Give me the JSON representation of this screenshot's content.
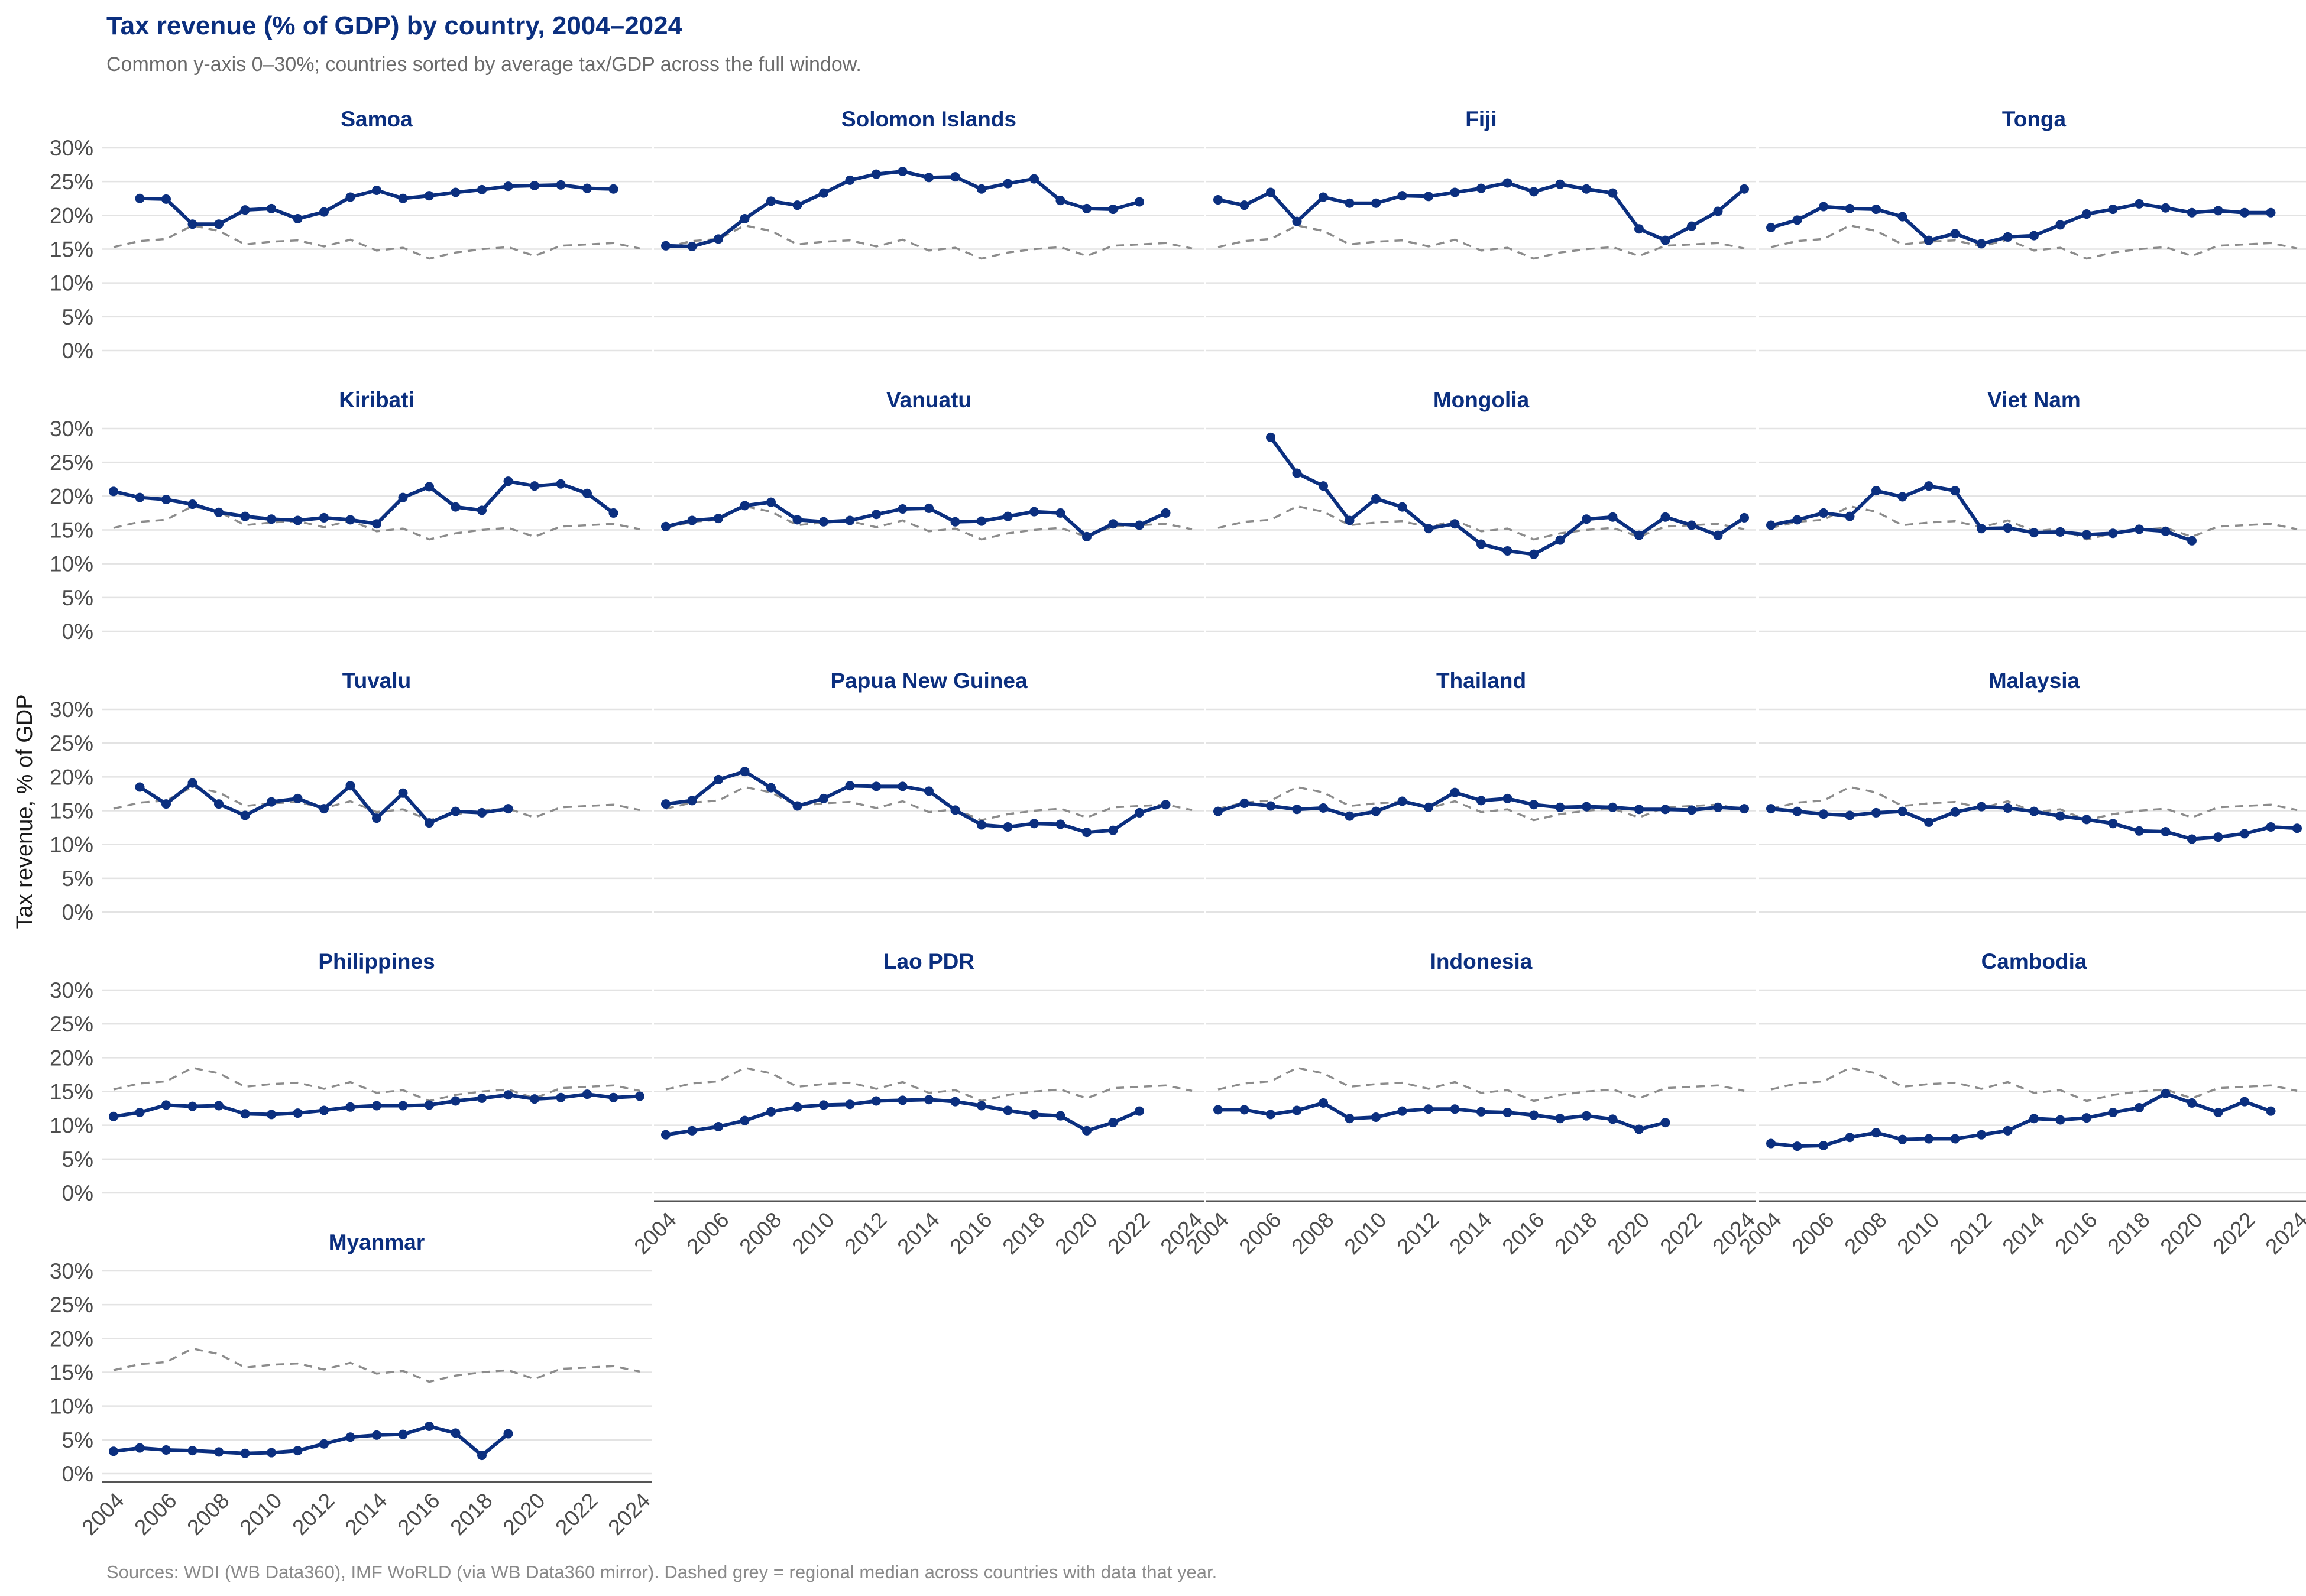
{
  "chart_data": {
    "type": "line",
    "title": "Tax revenue (% of GDP) by country, 2004–2024",
    "subtitle": "Common y-axis 0–30%; countries sorted by average tax/GDP across the full window.",
    "ylabel": "Tax revenue, % of GDP",
    "caption": "Sources: WDI (WB Data360), IMF WoRLD (via WB Data360 mirror). Dashed grey = regional median across countries with data that year.",
    "ylim": [
      0,
      30
    ],
    "xlim": [
      2004,
      2024
    ],
    "yticks": [
      0,
      5,
      10,
      15,
      20,
      25,
      30
    ],
    "ytick_labels": [
      "0%",
      "5%",
      "10%",
      "15%",
      "20%",
      "25%",
      "30%"
    ],
    "xticks": [
      2004,
      2006,
      2008,
      2010,
      2012,
      2014,
      2016,
      2018,
      2020,
      2022,
      2024
    ],
    "xtick_labels": [
      "2004",
      "2006",
      "2008",
      "2010",
      "2012",
      "2014",
      "2016",
      "2018",
      "2020",
      "2022",
      "2024"
    ],
    "grid": true,
    "colors": {
      "series": "#0b2f7f",
      "median": "#8c8c8c",
      "title": "#0b2f7f"
    },
    "regional_median": {
      "x": [
        2004,
        2005,
        2006,
        2007,
        2008,
        2009,
        2010,
        2011,
        2012,
        2013,
        2014,
        2015,
        2016,
        2017,
        2018,
        2019,
        2020,
        2021,
        2022,
        2023,
        2024
      ],
      "y": [
        15.3,
        16.2,
        16.5,
        18.5,
        17.7,
        15.7,
        16.1,
        16.3,
        15.4,
        16.4,
        14.8,
        15.2,
        13.6,
        14.5,
        15.0,
        15.3,
        14.0,
        15.5,
        15.7,
        15.9,
        15.1
      ]
    },
    "panels": [
      {
        "name": "Samoa",
        "x": [
          2005,
          2006,
          2007,
          2008,
          2009,
          2010,
          2011,
          2012,
          2013,
          2014,
          2015,
          2016,
          2017,
          2018,
          2019,
          2020,
          2021,
          2022,
          2023
        ],
        "y": [
          22.5,
          22.4,
          18.7,
          18.7,
          20.8,
          21.0,
          19.5,
          20.5,
          22.7,
          23.7,
          22.5,
          22.9,
          23.4,
          23.8,
          24.3,
          24.4,
          24.5,
          24.0,
          23.9
        ]
      },
      {
        "name": "Solomon Islands",
        "x": [
          2004,
          2005,
          2006,
          2007,
          2008,
          2009,
          2010,
          2011,
          2012,
          2013,
          2014,
          2015,
          2016,
          2017,
          2018,
          2019,
          2020,
          2021,
          2022
        ],
        "y": [
          15.5,
          15.4,
          16.5,
          19.5,
          22.1,
          21.5,
          23.3,
          25.2,
          26.1,
          26.5,
          25.6,
          25.7,
          23.9,
          24.7,
          25.4,
          22.2,
          21.0,
          20.9,
          22.0
        ]
      },
      {
        "name": "Fiji",
        "x": [
          2004,
          2005,
          2006,
          2007,
          2008,
          2009,
          2010,
          2011,
          2012,
          2013,
          2014,
          2015,
          2016,
          2017,
          2018,
          2019,
          2020,
          2021,
          2022,
          2023,
          2024
        ],
        "y": [
          22.3,
          21.5,
          23.4,
          19.1,
          22.7,
          21.8,
          21.8,
          22.9,
          22.8,
          23.4,
          24.0,
          24.8,
          23.5,
          24.6,
          23.9,
          23.3,
          18.0,
          16.3,
          18.4,
          20.6,
          23.9
        ]
      },
      {
        "name": "Tonga",
        "x": [
          2004,
          2005,
          2006,
          2007,
          2008,
          2009,
          2010,
          2011,
          2012,
          2013,
          2014,
          2015,
          2016,
          2017,
          2018,
          2019,
          2020,
          2021,
          2022,
          2023
        ],
        "y": [
          18.2,
          19.3,
          21.3,
          21.0,
          20.9,
          19.8,
          16.3,
          17.3,
          15.8,
          16.8,
          17.0,
          18.6,
          20.2,
          20.9,
          21.7,
          21.1,
          20.4,
          20.7,
          20.4,
          20.4
        ]
      },
      {
        "name": "Kiribati",
        "x": [
          2004,
          2005,
          2006,
          2007,
          2008,
          2009,
          2010,
          2011,
          2012,
          2013,
          2014,
          2015,
          2016,
          2017,
          2018,
          2019,
          2020,
          2021,
          2022,
          2023
        ],
        "y": [
          20.7,
          19.8,
          19.5,
          18.8,
          17.6,
          17.0,
          16.6,
          16.4,
          16.8,
          16.5,
          15.9,
          19.8,
          21.4,
          18.4,
          17.9,
          22.2,
          21.5,
          21.8,
          20.4,
          17.5
        ]
      },
      {
        "name": "Vanuatu",
        "x": [
          2004,
          2005,
          2006,
          2007,
          2008,
          2009,
          2010,
          2011,
          2012,
          2013,
          2014,
          2015,
          2016,
          2017,
          2018,
          2019,
          2020,
          2021,
          2022,
          2023
        ],
        "y": [
          15.5,
          16.4,
          16.7,
          18.6,
          19.1,
          16.5,
          16.2,
          16.4,
          17.3,
          18.1,
          18.2,
          16.2,
          16.3,
          17.0,
          17.7,
          17.5,
          14.0,
          15.9,
          15.7,
          17.5
        ]
      },
      {
        "name": "Mongolia",
        "x": [
          2006,
          2007,
          2008,
          2009,
          2010,
          2011,
          2012,
          2013,
          2014,
          2015,
          2016,
          2017,
          2018,
          2019,
          2020,
          2021,
          2022,
          2023,
          2024
        ],
        "y": [
          28.7,
          23.4,
          21.5,
          16.4,
          19.6,
          18.4,
          15.2,
          15.9,
          12.9,
          11.9,
          11.4,
          13.5,
          16.6,
          16.9,
          14.2,
          16.9,
          15.7,
          14.2,
          16.8
        ]
      },
      {
        "name": "Viet Nam",
        "x": [
          2004,
          2005,
          2006,
          2007,
          2008,
          2009,
          2010,
          2011,
          2012,
          2013,
          2014,
          2015,
          2016,
          2017,
          2018,
          2019,
          2020
        ],
        "y": [
          15.7,
          16.5,
          17.5,
          17.0,
          20.8,
          19.9,
          21.5,
          20.8,
          15.2,
          15.3,
          14.6,
          14.7,
          14.3,
          14.5,
          15.1,
          14.8,
          13.4
        ]
      },
      {
        "name": "Tuvalu",
        "x": [
          2005,
          2006,
          2007,
          2008,
          2009,
          2010,
          2011,
          2012,
          2013,
          2014,
          2015,
          2016,
          2017,
          2018,
          2019
        ],
        "y": [
          18.5,
          16.0,
          19.1,
          16.0,
          14.3,
          16.3,
          16.8,
          15.3,
          18.7,
          13.9,
          17.6,
          13.2,
          14.9,
          14.7,
          15.3
        ]
      },
      {
        "name": "Papua New Guinea",
        "x": [
          2004,
          2005,
          2006,
          2007,
          2008,
          2009,
          2010,
          2011,
          2012,
          2013,
          2014,
          2015,
          2016,
          2017,
          2018,
          2019,
          2020,
          2021,
          2022,
          2023
        ],
        "y": [
          16.0,
          16.5,
          19.6,
          20.8,
          18.4,
          15.7,
          16.8,
          18.7,
          18.6,
          18.6,
          17.9,
          15.1,
          12.9,
          12.6,
          13.1,
          13.0,
          11.8,
          12.1,
          14.7,
          15.9
        ]
      },
      {
        "name": "Thailand",
        "x": [
          2004,
          2005,
          2006,
          2007,
          2008,
          2009,
          2010,
          2011,
          2012,
          2013,
          2014,
          2015,
          2016,
          2017,
          2018,
          2019,
          2020,
          2021,
          2022,
          2023,
          2024
        ],
        "y": [
          14.9,
          16.1,
          15.7,
          15.2,
          15.4,
          14.2,
          14.9,
          16.4,
          15.5,
          17.7,
          16.5,
          16.8,
          15.9,
          15.5,
          15.6,
          15.5,
          15.2,
          15.2,
          15.1,
          15.5,
          15.3
        ]
      },
      {
        "name": "Malaysia",
        "x": [
          2004,
          2005,
          2006,
          2007,
          2008,
          2009,
          2010,
          2011,
          2012,
          2013,
          2014,
          2015,
          2016,
          2017,
          2018,
          2019,
          2020,
          2021,
          2022,
          2023,
          2024
        ],
        "y": [
          15.3,
          14.9,
          14.5,
          14.3,
          14.7,
          14.9,
          13.3,
          14.8,
          15.6,
          15.4,
          14.9,
          14.2,
          13.7,
          13.1,
          12.0,
          11.9,
          10.8,
          11.1,
          11.6,
          12.6,
          12.4
        ]
      },
      {
        "name": "Philippines",
        "x": [
          2004,
          2005,
          2006,
          2007,
          2008,
          2009,
          2010,
          2011,
          2012,
          2013,
          2014,
          2015,
          2016,
          2017,
          2018,
          2019,
          2020,
          2021,
          2022,
          2023,
          2024
        ],
        "y": [
          11.3,
          11.9,
          13.0,
          12.8,
          12.9,
          11.7,
          11.6,
          11.8,
          12.2,
          12.7,
          12.9,
          12.9,
          13.0,
          13.6,
          14.0,
          14.5,
          13.9,
          14.1,
          14.6,
          14.1,
          14.3
        ]
      },
      {
        "name": "Lao PDR",
        "x": [
          2004,
          2005,
          2006,
          2007,
          2008,
          2009,
          2010,
          2011,
          2012,
          2013,
          2014,
          2015,
          2016,
          2017,
          2018,
          2019,
          2020,
          2021,
          2022
        ],
        "y": [
          8.6,
          9.2,
          9.8,
          10.7,
          12.0,
          12.7,
          13.0,
          13.1,
          13.6,
          13.7,
          13.8,
          13.5,
          12.9,
          12.2,
          11.6,
          11.4,
          9.2,
          10.4,
          12.1
        ]
      },
      {
        "name": "Indonesia",
        "x": [
          2004,
          2005,
          2006,
          2007,
          2008,
          2009,
          2010,
          2011,
          2012,
          2013,
          2014,
          2015,
          2016,
          2017,
          2018,
          2019,
          2020,
          2021
        ],
        "y": [
          12.3,
          12.3,
          11.6,
          12.2,
          13.3,
          11.0,
          11.2,
          12.1,
          12.4,
          12.4,
          12.0,
          11.9,
          11.5,
          11.0,
          11.4,
          10.9,
          9.4,
          10.4
        ]
      },
      {
        "name": "Cambodia",
        "x": [
          2004,
          2005,
          2006,
          2007,
          2008,
          2009,
          2010,
          2011,
          2012,
          2013,
          2014,
          2015,
          2016,
          2017,
          2018,
          2019,
          2020,
          2021,
          2022,
          2023
        ],
        "y": [
          7.3,
          6.9,
          7.0,
          8.2,
          8.9,
          7.9,
          8.0,
          8.0,
          8.6,
          9.2,
          11.0,
          10.8,
          11.1,
          11.9,
          12.6,
          14.7,
          13.3,
          11.9,
          13.5,
          12.1
        ]
      },
      {
        "name": "Myanmar",
        "x": [
          2004,
          2005,
          2006,
          2007,
          2008,
          2009,
          2010,
          2011,
          2012,
          2013,
          2014,
          2015,
          2016,
          2017,
          2018,
          2019
        ],
        "y": [
          3.3,
          3.8,
          3.5,
          3.4,
          3.2,
          3.0,
          3.1,
          3.4,
          4.4,
          5.4,
          5.7,
          5.8,
          7.0,
          6.0,
          2.7,
          5.9
        ]
      }
    ]
  }
}
